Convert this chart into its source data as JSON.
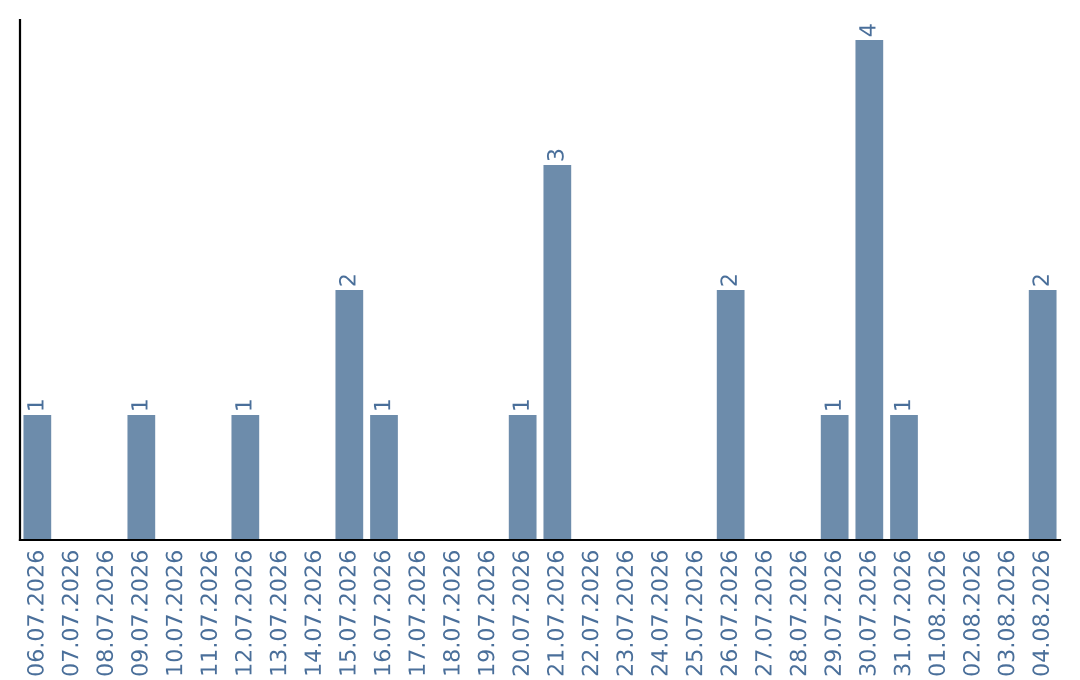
{
  "chart_data": {
    "type": "bar",
    "categories": [
      "06.07.2026",
      "07.07.2026",
      "08.07.2026",
      "09.07.2026",
      "10.07.2026",
      "11.07.2026",
      "12.07.2026",
      "13.07.2026",
      "14.07.2026",
      "15.07.2026",
      "16.07.2026",
      "17.07.2026",
      "18.07.2026",
      "19.07.2026",
      "20.07.2026",
      "21.07.2026",
      "22.07.2026",
      "23.07.2026",
      "24.07.2026",
      "25.07.2026",
      "26.07.2026",
      "27.07.2026",
      "28.07.2026",
      "29.07.2026",
      "30.07.2026",
      "31.07.2026",
      "01.08.2026",
      "02.08.2026",
      "03.08.2026",
      "04.08.2026"
    ],
    "values": [
      1,
      0,
      0,
      1,
      0,
      0,
      1,
      0,
      0,
      2,
      1,
      0,
      0,
      0,
      1,
      3,
      0,
      0,
      0,
      0,
      2,
      0,
      0,
      1,
      4,
      1,
      0,
      0,
      0,
      2
    ],
    "value_labels": [
      "1",
      null,
      null,
      "1",
      null,
      null,
      "1",
      null,
      null,
      "2",
      "1",
      null,
      null,
      null,
      "1",
      "3",
      null,
      null,
      null,
      null,
      "2",
      null,
      null,
      "1",
      "4",
      "1",
      null,
      null,
      null,
      "2"
    ],
    "color": "#6d8cab",
    "ylim": [
      0,
      4.16
    ],
    "tick_labels": "x",
    "grid": false,
    "legend": false
  }
}
